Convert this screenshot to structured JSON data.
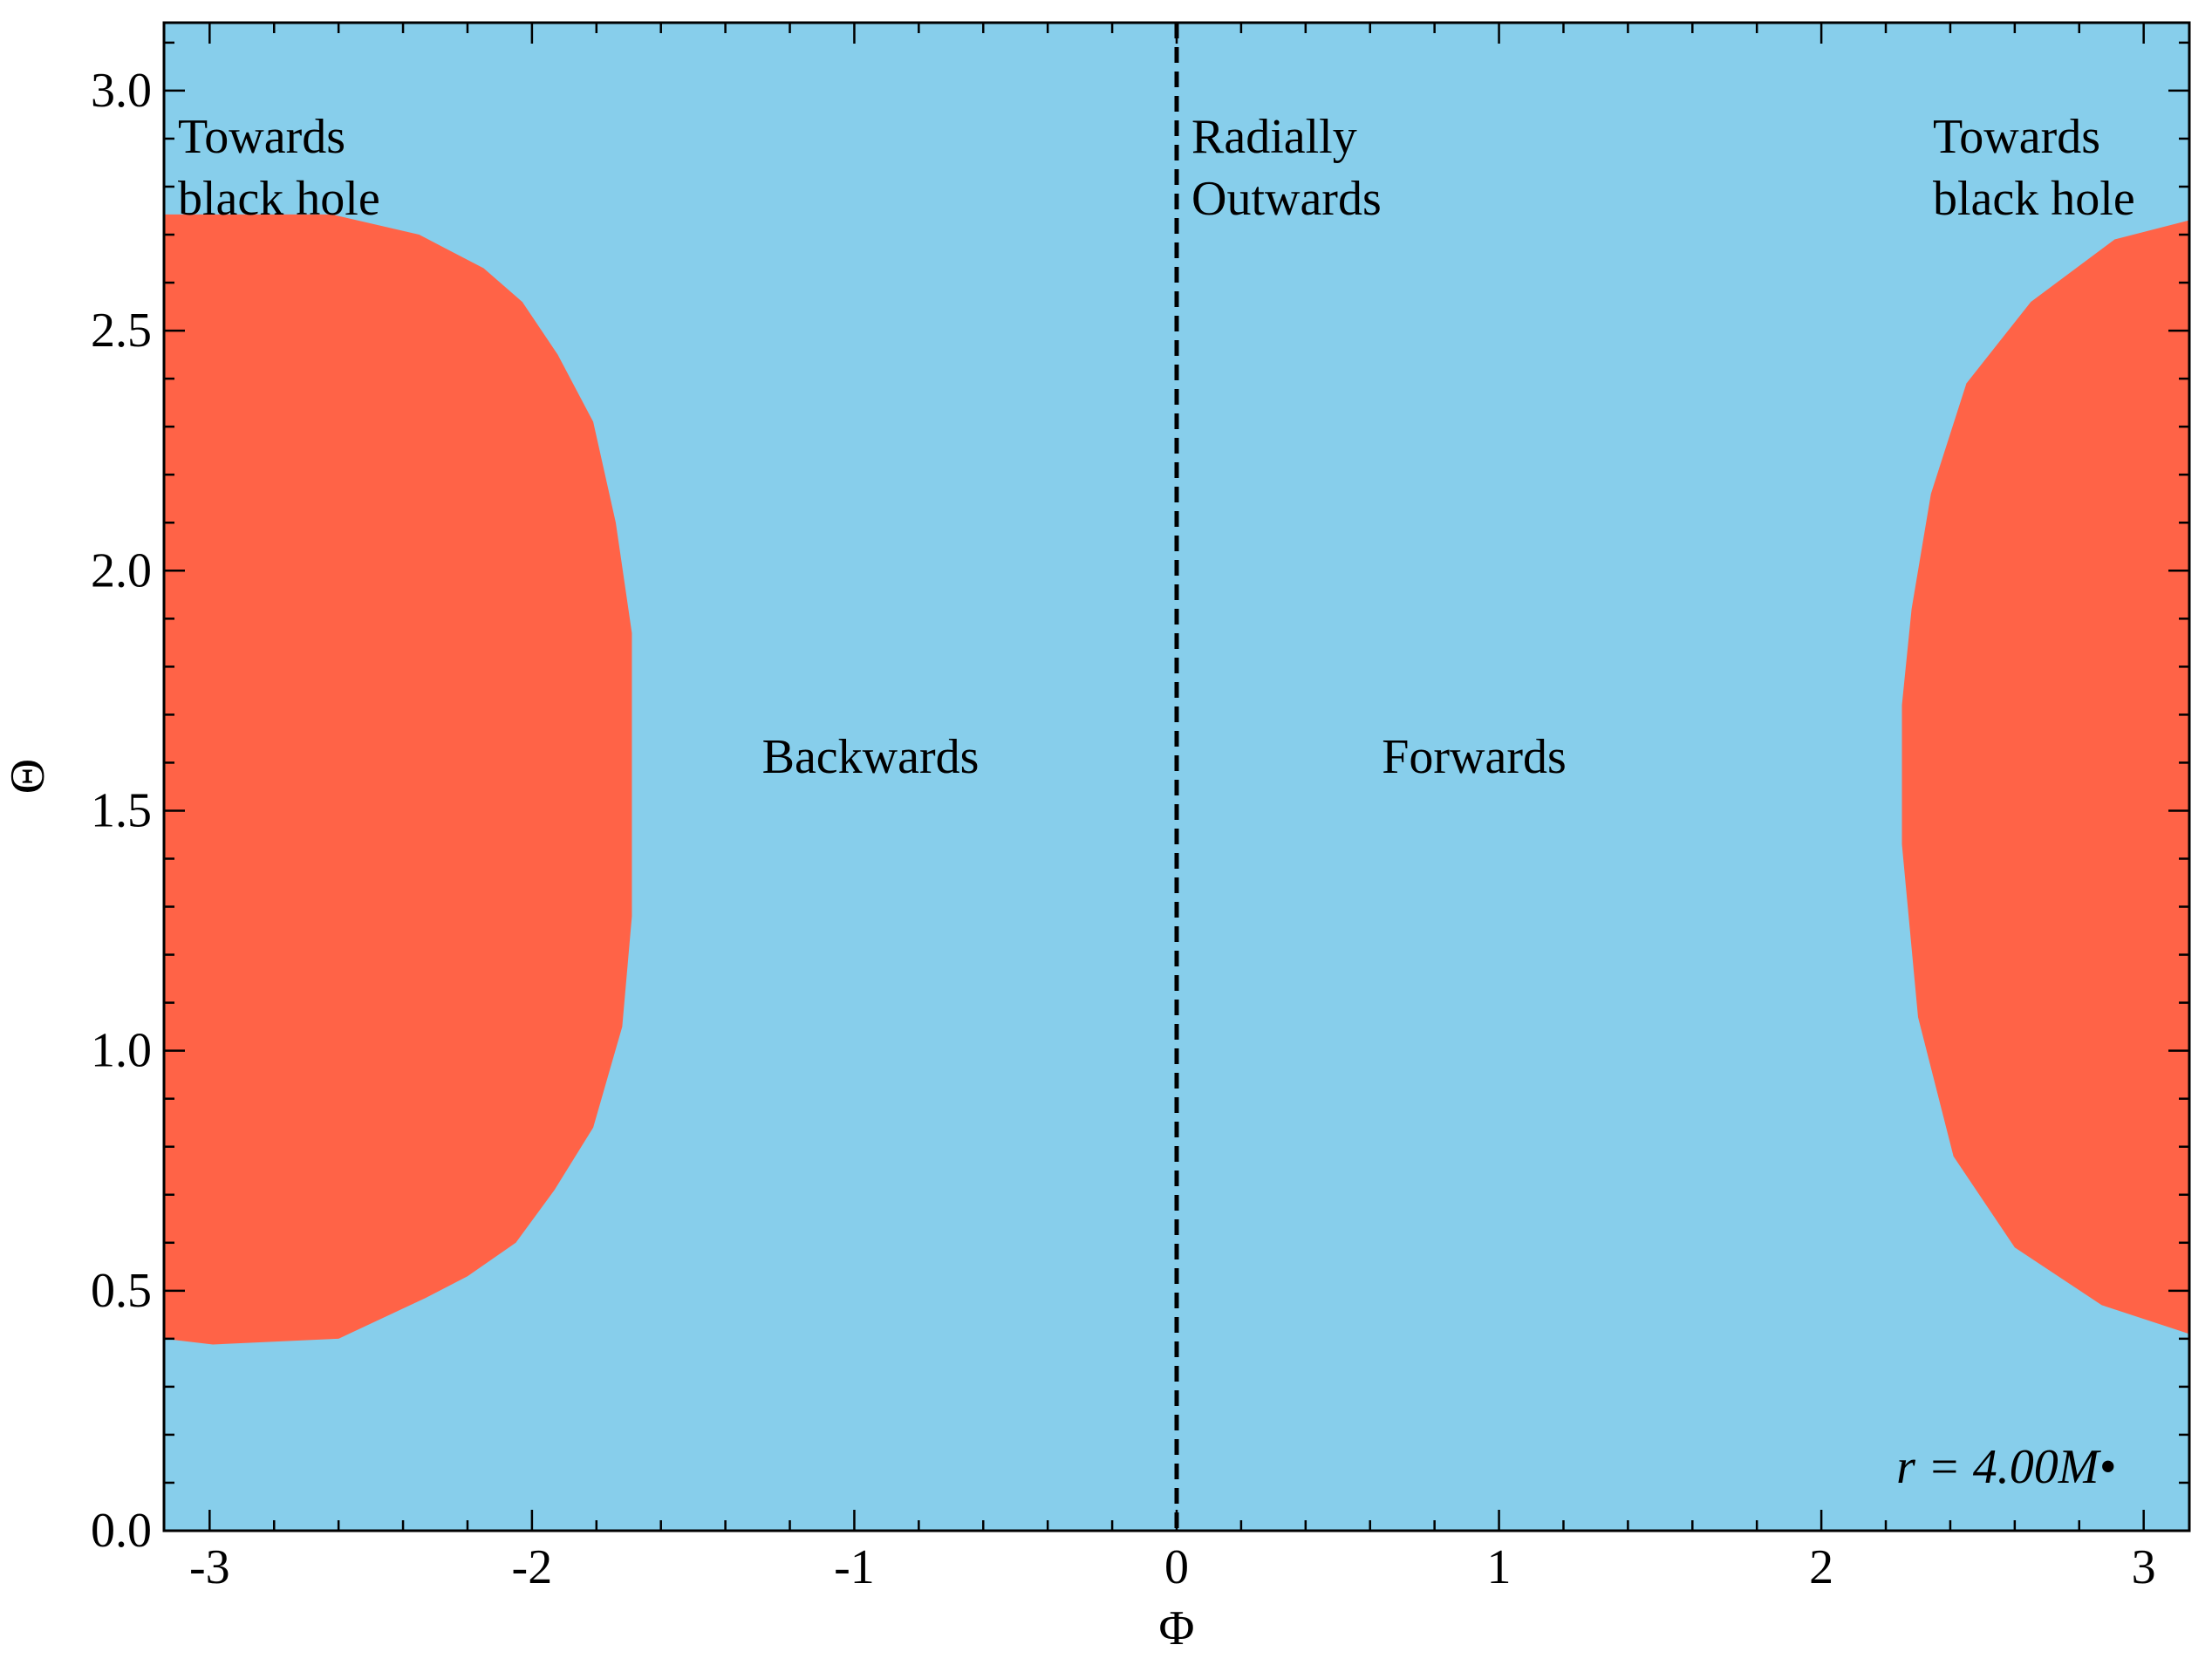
{
  "chart_data": {
    "type": "region",
    "xlabel": "Φ",
    "ylabel": "Θ",
    "xlim": [
      -3.14159,
      3.14159
    ],
    "ylim": [
      0,
      3.14159
    ],
    "xticks": [
      -3,
      -2,
      -1,
      0,
      1,
      2,
      3
    ],
    "yticks": [
      {
        "value": 0,
        "label": "0.0"
      },
      {
        "value": 0.5,
        "label": "0.5"
      },
      {
        "value": 1,
        "label": "1.0"
      },
      {
        "value": 1.5,
        "label": "1.5"
      },
      {
        "value": 2,
        "label": "2.0"
      },
      {
        "value": 2.5,
        "label": "2.5"
      },
      {
        "value": 3,
        "label": "3.0"
      }
    ],
    "xminor": [
      -2.8,
      -2.6,
      -2.4,
      -2.2,
      -1.8,
      -1.6,
      -1.4,
      -1.2,
      -0.8,
      -0.6,
      -0.4,
      -0.2,
      0.2,
      0.4,
      0.6,
      0.8,
      1.2,
      1.4,
      1.6,
      1.8,
      2.2,
      2.4,
      2.6,
      2.8
    ],
    "yminor": [
      0.1,
      0.2,
      0.3,
      0.4,
      0.6,
      0.7,
      0.8,
      0.9,
      1.1,
      1.2,
      1.3,
      1.4,
      1.6,
      1.7,
      1.8,
      1.9,
      2.1,
      2.2,
      2.3,
      2.4,
      2.6,
      2.7,
      2.8,
      2.9,
      3.1
    ],
    "background": "#87ceeb",
    "regions": [
      {
        "color": "#ff6347",
        "x": [
          -3.14159,
          -2.62,
          -2.35,
          -2.15,
          -2.03,
          -1.92,
          -1.81,
          -1.74,
          -1.69,
          -1.69,
          -1.72,
          -1.81,
          -1.93,
          -2.05,
          -2.2,
          -2.33,
          -2.6,
          -2.99,
          -3.14159
        ],
        "y": [
          2.742,
          2.742,
          2.7,
          2.63,
          2.56,
          2.45,
          2.31,
          2.1,
          1.87,
          1.28,
          1.05,
          0.84,
          0.71,
          0.6,
          0.53,
          0.485,
          0.4,
          0.388,
          0.4
        ]
      },
      {
        "color": "#ff6347",
        "x": [
          3.14159,
          2.91,
          2.65,
          2.45,
          2.34,
          2.28,
          2.25,
          2.25,
          2.3,
          2.41,
          2.6,
          2.87,
          3.14159
        ],
        "y": [
          2.73,
          2.69,
          2.56,
          2.39,
          2.16,
          1.92,
          1.72,
          1.43,
          1.07,
          0.78,
          0.59,
          0.47,
          0.41
        ]
      }
    ],
    "vline": {
      "x": 0,
      "color": "#000000"
    },
    "annotations": [
      {
        "lines": [
          "Towards",
          "black hole"
        ]
      },
      {
        "lines": [
          "Radially",
          "Outwards"
        ]
      },
      {
        "lines": [
          "Towards",
          "black hole"
        ]
      },
      {
        "lines": [
          "Backwards"
        ]
      },
      {
        "lines": [
          "Forwards"
        ]
      },
      {
        "lines": [
          "r = 4.00M•"
        ]
      }
    ]
  }
}
